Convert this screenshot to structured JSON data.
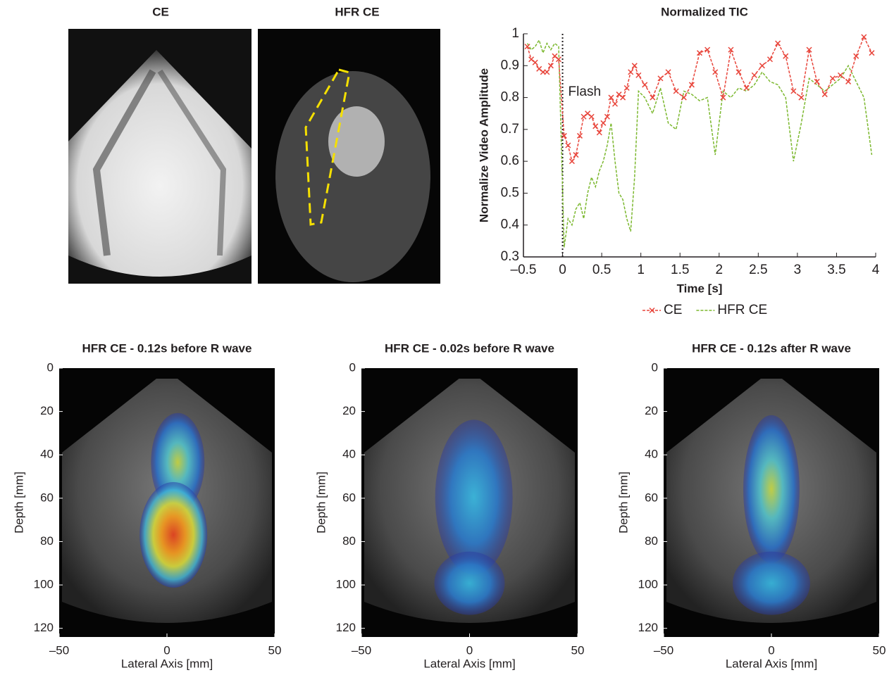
{
  "chart_data": [
    {
      "type": "image",
      "title": "CE"
    },
    {
      "type": "image",
      "title": "HFR CE"
    },
    {
      "type": "line",
      "title": "Normalized TIC",
      "xlabel": "Time [s]",
      "ylabel": "Normalize Video Amplitude",
      "x": [
        -0.45,
        -0.4,
        -0.35,
        -0.3,
        -0.25,
        -0.2,
        -0.15,
        -0.1,
        -0.05,
        0.02,
        0.07,
        0.12,
        0.17,
        0.22,
        0.27,
        0.32,
        0.37,
        0.42,
        0.47,
        0.52,
        0.57,
        0.62,
        0.67,
        0.72,
        0.77,
        0.82,
        0.87,
        0.92,
        0.97,
        1.05,
        1.15,
        1.25,
        1.35,
        1.45,
        1.55,
        1.65,
        1.75,
        1.85,
        1.95,
        2.05,
        2.15,
        2.25,
        2.35,
        2.45,
        2.55,
        2.65,
        2.75,
        2.85,
        2.95,
        3.05,
        3.15,
        3.25,
        3.35,
        3.45,
        3.55,
        3.65,
        3.75,
        3.85,
        3.95
      ],
      "series": [
        {
          "name": "CE",
          "color": "#e8463c",
          "marker": "x",
          "dashed": true,
          "values": [
            0.96,
            0.92,
            0.91,
            0.89,
            0.88,
            0.88,
            0.9,
            0.93,
            0.92,
            0.68,
            0.65,
            0.6,
            0.62,
            0.68,
            0.74,
            0.75,
            0.74,
            0.71,
            0.69,
            0.72,
            0.74,
            0.8,
            0.78,
            0.81,
            0.8,
            0.83,
            0.88,
            0.9,
            0.87,
            0.84,
            0.8,
            0.86,
            0.88,
            0.82,
            0.8,
            0.84,
            0.94,
            0.95,
            0.88,
            0.8,
            0.95,
            0.88,
            0.83,
            0.87,
            0.9,
            0.92,
            0.97,
            0.93,
            0.82,
            0.8,
            0.95,
            0.85,
            0.81,
            0.86,
            0.87,
            0.85,
            0.93,
            0.99,
            0.94
          ]
        },
        {
          "name": "HFR CE",
          "color": "#7cb82f",
          "marker": "none",
          "dashed": true,
          "values": [
            0.97,
            0.95,
            0.96,
            0.98,
            0.94,
            0.97,
            0.95,
            0.97,
            0.96,
            0.33,
            0.42,
            0.4,
            0.45,
            0.47,
            0.42,
            0.5,
            0.55,
            0.52,
            0.57,
            0.6,
            0.65,
            0.72,
            0.6,
            0.5,
            0.48,
            0.42,
            0.38,
            0.55,
            0.82,
            0.8,
            0.75,
            0.83,
            0.72,
            0.7,
            0.82,
            0.81,
            0.79,
            0.8,
            0.62,
            0.82,
            0.8,
            0.83,
            0.82,
            0.84,
            0.88,
            0.85,
            0.84,
            0.8,
            0.6,
            0.72,
            0.86,
            0.84,
            0.82,
            0.84,
            0.86,
            0.9,
            0.85,
            0.8,
            0.62
          ]
        }
      ],
      "xlim": [
        -0.5,
        4
      ],
      "xticks": [
        {
          "value": -0.5,
          "label": "–0.5"
        },
        0,
        0.5,
        1,
        1.5,
        2,
        2.5,
        3,
        3.5,
        4
      ],
      "ylim": [
        0.3,
        1
      ],
      "yticks": [
        0.3,
        0.4,
        0.5,
        0.6,
        0.7,
        0.8,
        0.9,
        1
      ],
      "annotation": {
        "text": "Flash",
        "x": 0
      },
      "legend": "bottom"
    },
    {
      "type": "image",
      "title": "HFR CE - 0.12s before R wave",
      "xlabel": "Lateral Axis [mm]",
      "ylabel": "Depth [mm]",
      "xlim": [
        -50,
        50
      ],
      "xticks": [
        {
          "value": -50,
          "label": "–50"
        },
        0,
        50
      ],
      "ylim": [
        124,
        0
      ],
      "yticks": [
        0,
        20,
        40,
        60,
        80,
        100,
        120
      ]
    },
    {
      "type": "image",
      "title": "HFR CE - 0.02s before R wave",
      "xlabel": "Lateral Axis [mm]",
      "ylabel": "Depth [mm]",
      "xlim": [
        -50,
        50
      ],
      "xticks": [
        {
          "value": -50,
          "label": "–50"
        },
        0,
        50
      ],
      "ylim": [
        124,
        0
      ],
      "yticks": [
        0,
        20,
        40,
        60,
        80,
        100,
        120
      ]
    },
    {
      "type": "image",
      "title": "HFR CE - 0.12s after R wave",
      "xlabel": "Lateral Axis [mm]",
      "ylabel": "Depth [mm]",
      "xlim": [
        -50,
        50
      ],
      "xticks": [
        {
          "value": -50,
          "label": "–50"
        },
        0,
        50
      ],
      "ylim": [
        124,
        0
      ],
      "yticks": [
        0,
        20,
        40,
        60,
        80,
        100,
        120
      ]
    }
  ]
}
